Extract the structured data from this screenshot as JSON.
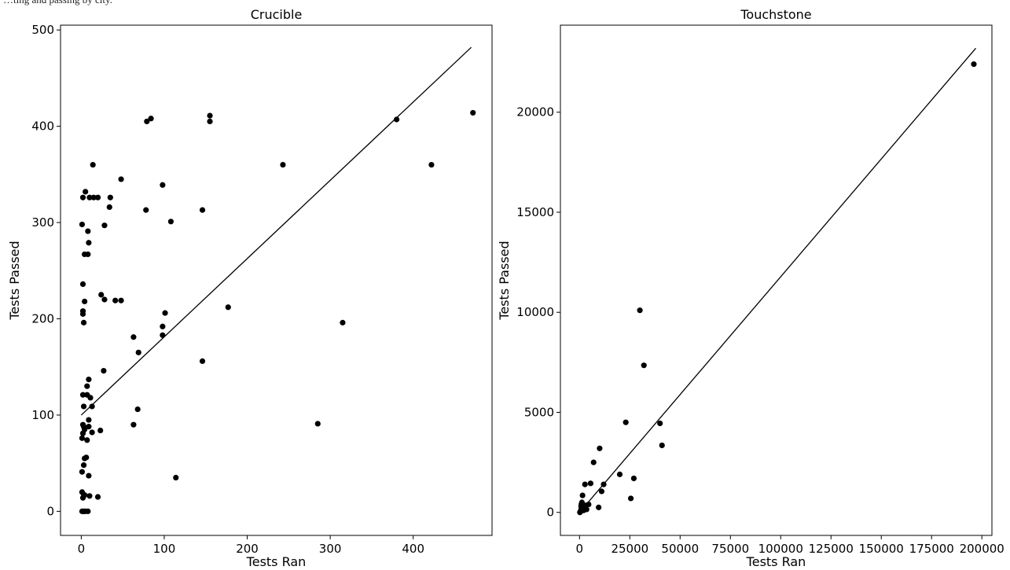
{
  "caption": "…ting and passing by city.",
  "chart_data": [
    {
      "type": "scatter",
      "title": "Crucible",
      "xlabel": "Tests Ran",
      "ylabel": "Tests Passed",
      "xlim": [
        -25,
        495
      ],
      "ylim": [
        -25,
        505
      ],
      "xticks": [
        0,
        100,
        200,
        300,
        400
      ],
      "yticks": [
        0,
        100,
        200,
        300,
        400,
        500
      ],
      "trendline": [
        [
          0,
          100
        ],
        [
          470,
          482
        ]
      ],
      "points": [
        [
          1,
          0
        ],
        [
          3,
          0
        ],
        [
          5,
          0
        ],
        [
          8,
          0
        ],
        [
          2,
          14
        ],
        [
          4,
          17
        ],
        [
          1,
          20
        ],
        [
          3,
          16
        ],
        [
          10,
          16
        ],
        [
          20,
          15
        ],
        [
          9,
          37
        ],
        [
          114,
          35
        ],
        [
          1,
          41
        ],
        [
          3,
          48
        ],
        [
          4,
          55
        ],
        [
          6,
          56
        ],
        [
          1,
          76
        ],
        [
          2,
          81
        ],
        [
          4,
          85
        ],
        [
          2,
          90
        ],
        [
          3,
          88
        ],
        [
          7,
          74
        ],
        [
          9,
          88
        ],
        [
          13,
          82
        ],
        [
          23,
          84
        ],
        [
          9,
          95
        ],
        [
          3,
          109
        ],
        [
          13,
          109
        ],
        [
          2,
          121
        ],
        [
          7,
          121
        ],
        [
          11,
          118
        ],
        [
          7,
          130
        ],
        [
          9,
          137
        ],
        [
          68,
          106
        ],
        [
          63,
          90
        ],
        [
          285,
          91
        ],
        [
          27,
          146
        ],
        [
          69,
          165
        ],
        [
          63,
          181
        ],
        [
          146,
          156
        ],
        [
          98,
          183
        ],
        [
          98,
          192
        ],
        [
          101,
          206
        ],
        [
          3,
          196
        ],
        [
          2,
          205
        ],
        [
          2,
          208
        ],
        [
          4,
          218
        ],
        [
          24,
          225
        ],
        [
          28,
          220
        ],
        [
          41,
          219
        ],
        [
          48,
          219
        ],
        [
          177,
          212
        ],
        [
          315,
          196
        ],
        [
          2,
          236
        ],
        [
          4,
          267
        ],
        [
          8,
          267
        ],
        [
          9,
          279
        ],
        [
          8,
          291
        ],
        [
          1,
          298
        ],
        [
          28,
          297
        ],
        [
          34,
          316
        ],
        [
          35,
          326
        ],
        [
          10,
          326
        ],
        [
          15,
          326
        ],
        [
          20,
          326
        ],
        [
          2,
          326
        ],
        [
          5,
          332
        ],
        [
          14,
          360
        ],
        [
          48,
          345
        ],
        [
          98,
          339
        ],
        [
          108,
          301
        ],
        [
          78,
          313
        ],
        [
          146,
          313
        ],
        [
          243,
          360
        ],
        [
          422,
          360
        ],
        [
          79,
          405
        ],
        [
          84,
          408
        ],
        [
          155,
          405
        ],
        [
          155,
          411
        ],
        [
          380,
          407
        ],
        [
          472,
          414
        ]
      ]
    },
    {
      "type": "scatter",
      "title": "Touchstone",
      "xlabel": "Tests Ran",
      "ylabel": "Tests Passed",
      "xlim": [
        -9500,
        205000
      ],
      "ylim": [
        -1150,
        24350
      ],
      "xticks": [
        0,
        25000,
        50000,
        75000,
        100000,
        125000,
        150000,
        175000,
        200000
      ],
      "yticks": [
        0,
        5000,
        10000,
        15000,
        20000
      ],
      "trendline": [
        [
          0,
          0
        ],
        [
          197000,
          23200
        ]
      ],
      "points": [
        [
          200,
          0
        ],
        [
          500,
          50
        ],
        [
          800,
          150
        ],
        [
          1000,
          100
        ],
        [
          1200,
          200
        ],
        [
          1500,
          250
        ],
        [
          1800,
          300
        ],
        [
          2500,
          200
        ],
        [
          3000,
          350
        ],
        [
          4500,
          400
        ],
        [
          900,
          400
        ],
        [
          1500,
          850
        ],
        [
          1200,
          500
        ],
        [
          800,
          300
        ],
        [
          2000,
          100
        ],
        [
          3500,
          150
        ],
        [
          2700,
          1400
        ],
        [
          5500,
          1450
        ],
        [
          7000,
          2500
        ],
        [
          10000,
          3200
        ],
        [
          11000,
          1050
        ],
        [
          12000,
          1400
        ],
        [
          9500,
          250
        ],
        [
          20000,
          1900
        ],
        [
          23000,
          4500
        ],
        [
          25500,
          700
        ],
        [
          27000,
          1700
        ],
        [
          30000,
          10100
        ],
        [
          32000,
          7350
        ],
        [
          40000,
          4450
        ],
        [
          41000,
          3350
        ],
        [
          196000,
          22400
        ]
      ]
    }
  ]
}
